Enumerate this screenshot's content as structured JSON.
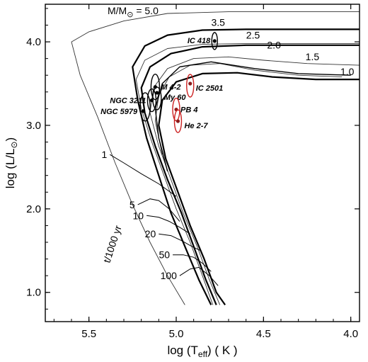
{
  "chart_data": {
    "type": "line",
    "xlabel": "log (T",
    "xlabel_sub": "eff",
    "xlabel_tail": ") ( K )",
    "ylabel": "log (L/L",
    "ylabel_tail": ")",
    "xlim": [
      5.75,
      3.95
    ],
    "ylim": [
      0.65,
      4.45
    ],
    "x_reversed": true,
    "xticks": [
      5.5,
      5.0,
      4.5,
      4.0
    ],
    "xtick_labels": [
      "5.5",
      "5.0",
      "4.5",
      "4.0"
    ],
    "yticks": [
      1.0,
      2.0,
      3.0,
      4.0
    ],
    "ytick_labels": [
      "1.0",
      "2.0",
      "3.0",
      "4.0"
    ],
    "grid": false,
    "legend": "none",
    "track_label_prefix": "M/M",
    "track_label_suffix": " = 5.0",
    "tracks": [
      {
        "name": "5.0",
        "style": "thin",
        "points": [
          [
            3.95,
            4.36
          ],
          [
            4.3,
            4.36
          ],
          [
            4.7,
            4.36
          ],
          [
            5.05,
            4.34
          ],
          [
            5.3,
            4.25
          ],
          [
            5.5,
            4.12
          ],
          [
            5.6,
            4.0
          ],
          [
            5.55,
            3.6
          ],
          [
            5.45,
            3.1
          ],
          [
            5.35,
            2.55
          ],
          [
            5.25,
            2.05
          ],
          [
            5.15,
            1.6
          ],
          [
            5.05,
            1.2
          ],
          [
            4.95,
            0.85
          ]
        ]
      },
      {
        "name": "3.5",
        "style": "thick",
        "points": [
          [
            3.95,
            4.15
          ],
          [
            4.3,
            4.15
          ],
          [
            4.6,
            4.15
          ],
          [
            4.85,
            4.14
          ],
          [
            5.05,
            4.08
          ],
          [
            5.18,
            3.95
          ],
          [
            5.25,
            3.7
          ],
          [
            5.22,
            3.3
          ],
          [
            5.17,
            2.85
          ],
          [
            5.1,
            2.4
          ],
          [
            5.03,
            1.95
          ],
          [
            4.95,
            1.55
          ],
          [
            4.87,
            1.15
          ],
          [
            4.8,
            0.85
          ]
        ]
      },
      {
        "name": "2.5",
        "style": "thin",
        "points": [
          [
            3.95,
            3.98
          ],
          [
            4.3,
            3.98
          ],
          [
            4.6,
            3.98
          ],
          [
            4.85,
            3.97
          ],
          [
            5.05,
            3.92
          ],
          [
            5.18,
            3.78
          ],
          [
            5.23,
            3.55
          ],
          [
            5.2,
            3.2
          ],
          [
            5.14,
            2.8
          ],
          [
            5.07,
            2.4
          ],
          [
            5.0,
            2.0
          ],
          [
            4.92,
            1.6
          ],
          [
            4.85,
            1.2
          ],
          [
            4.79,
            0.85
          ]
        ]
      },
      {
        "name": "2.0",
        "style": "thick",
        "points": [
          [
            3.95,
            3.96
          ],
          [
            4.3,
            3.96
          ],
          [
            4.6,
            3.96
          ],
          [
            4.85,
            3.94
          ],
          [
            5.03,
            3.86
          ],
          [
            5.15,
            3.7
          ],
          [
            5.2,
            3.45
          ],
          [
            5.18,
            3.15
          ],
          [
            5.12,
            2.75
          ],
          [
            5.05,
            2.35
          ],
          [
            4.97,
            1.95
          ],
          [
            4.9,
            1.55
          ],
          [
            4.83,
            1.15
          ],
          [
            4.77,
            0.85
          ]
        ]
      },
      {
        "name": "1.5",
        "style": "thin",
        "points": [
          [
            3.95,
            3.72
          ],
          [
            4.25,
            3.74
          ],
          [
            4.5,
            3.78
          ],
          [
            4.7,
            3.82
          ],
          [
            4.9,
            3.8
          ],
          [
            5.05,
            3.68
          ],
          [
            5.13,
            3.45
          ],
          [
            5.15,
            3.15
          ],
          [
            5.1,
            2.75
          ],
          [
            5.03,
            2.35
          ],
          [
            4.96,
            1.95
          ],
          [
            4.88,
            1.55
          ],
          [
            4.81,
            1.15
          ],
          [
            4.75,
            0.85
          ]
        ]
      },
      {
        "name": "1.0",
        "style": "thick",
        "points": [
          [
            3.95,
            3.55
          ],
          [
            4.2,
            3.55
          ],
          [
            4.45,
            3.58
          ],
          [
            4.65,
            3.63
          ],
          [
            4.85,
            3.62
          ],
          [
            5.0,
            3.52
          ],
          [
            5.08,
            3.3
          ],
          [
            5.1,
            3.0
          ],
          [
            5.06,
            2.6
          ],
          [
            4.99,
            2.2
          ],
          [
            4.92,
            1.8
          ],
          [
            4.84,
            1.4
          ],
          [
            4.77,
            1.0
          ],
          [
            4.72,
            0.85
          ]
        ]
      },
      {
        "name": "",
        "style": "thin",
        "points": [
          [
            4.05,
            3.58
          ],
          [
            4.3,
            3.6
          ],
          [
            4.55,
            3.66
          ],
          [
            4.75,
            3.74
          ],
          [
            4.92,
            3.72
          ],
          [
            5.04,
            3.58
          ],
          [
            5.1,
            3.36
          ],
          [
            5.12,
            3.05
          ],
          [
            5.08,
            2.65
          ]
        ]
      },
      {
        "name": "",
        "style": "medium",
        "points": [
          [
            4.0,
            3.6
          ],
          [
            4.3,
            3.62
          ],
          [
            4.55,
            3.68
          ],
          [
            4.8,
            3.76
          ],
          [
            4.98,
            3.7
          ],
          [
            5.08,
            3.5
          ],
          [
            5.12,
            3.2
          ],
          [
            5.1,
            2.85
          ],
          [
            5.05,
            2.45
          ]
        ]
      }
    ],
    "track_labels": [
      {
        "text": "3.5",
        "x": 4.76,
        "y": 4.19
      },
      {
        "text": "2.5",
        "x": 4.56,
        "y": 4.04
      },
      {
        "text": "2.0",
        "x": 4.44,
        "y": 3.92
      },
      {
        "text": "1.5",
        "x": 4.22,
        "y": 3.78
      },
      {
        "text": "1.0",
        "x": 4.02,
        "y": 3.6
      }
    ],
    "isochrones": [
      {
        "label": "1",
        "points": [
          [
            5.38,
            2.65
          ],
          [
            5.3,
            2.55
          ],
          [
            5.2,
            2.42
          ],
          [
            5.1,
            2.3
          ],
          [
            5.0,
            2.15
          ]
        ]
      },
      {
        "label": "5",
        "points": [
          [
            5.22,
            2.05
          ],
          [
            5.15,
            2.12
          ],
          [
            5.1,
            2.1
          ],
          [
            5.04,
            2.0
          ],
          [
            4.98,
            1.85
          ]
        ]
      },
      {
        "label": "10",
        "points": [
          [
            5.17,
            1.92
          ],
          [
            5.1,
            1.9
          ],
          [
            5.04,
            1.85
          ],
          [
            4.98,
            1.78
          ],
          [
            4.92,
            1.7
          ]
        ]
      },
      {
        "label": "20",
        "points": [
          [
            5.1,
            1.7
          ],
          [
            5.03,
            1.68
          ],
          [
            4.97,
            1.62
          ],
          [
            4.91,
            1.55
          ],
          [
            4.86,
            1.5
          ]
        ]
      },
      {
        "label": "50",
        "points": [
          [
            5.02,
            1.45
          ],
          [
            4.96,
            1.45
          ],
          [
            4.9,
            1.42
          ],
          [
            4.85,
            1.35
          ],
          [
            4.8,
            1.25
          ]
        ]
      },
      {
        "label": "100",
        "points": [
          [
            4.98,
            1.2
          ],
          [
            4.92,
            1.28
          ],
          [
            4.87,
            1.3
          ],
          [
            4.81,
            1.2
          ],
          [
            4.76,
            1.08
          ]
        ]
      }
    ],
    "isochrone_axis_label": "t/1000 yr",
    "objects": [
      {
        "name": "IC 418",
        "x": 4.78,
        "y": 4.01,
        "ellipse_color": "#000000"
      },
      {
        "name": "M 4-2",
        "x": 5.12,
        "y": 3.46,
        "ellipse_color": "#000000"
      },
      {
        "name": "My 60",
        "x": 5.11,
        "y": 3.39,
        "ellipse_color": "#000000"
      },
      {
        "name": "NGC 3211",
        "x": 5.14,
        "y": 3.3,
        "ellipse_color": "#000000"
      },
      {
        "name": "NGC 5979",
        "x": 5.19,
        "y": 3.17,
        "ellipse_color": "#000000"
      },
      {
        "name": "IC 2501",
        "x": 4.92,
        "y": 3.5,
        "ellipse_color": "#cc2222"
      },
      {
        "name": "PB 4",
        "x": 5.0,
        "y": 3.19,
        "ellipse_color": "#cc2222"
      },
      {
        "name": "He 2-7",
        "x": 4.99,
        "y": 3.05,
        "ellipse_color": "#cc2222"
      }
    ],
    "colors": {
      "curve": "#000000",
      "thin_curve": "#333333",
      "red_ellipse": "#cc2222",
      "black_ellipse": "#000000"
    }
  }
}
